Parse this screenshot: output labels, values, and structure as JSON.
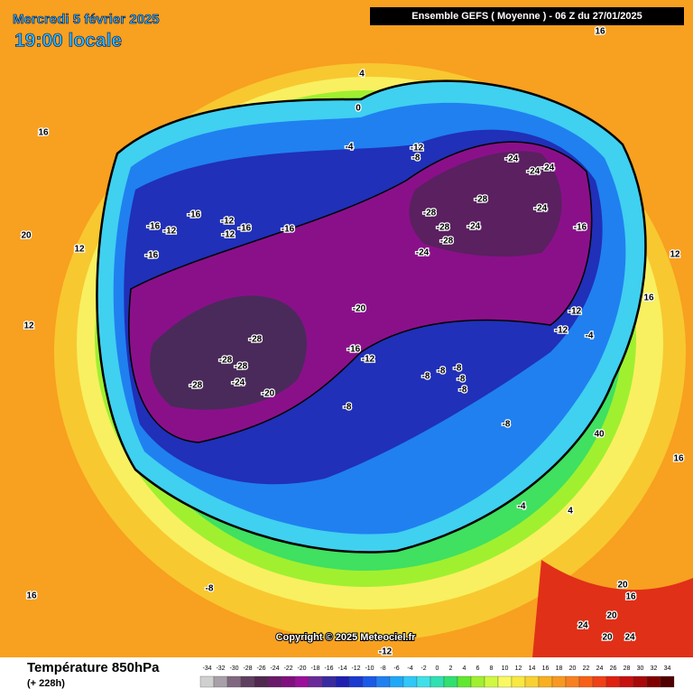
{
  "header": {
    "date": "Mercredi 5 février 2025",
    "time": "19:00 locale",
    "model": "Ensemble GEFS  ( Moyenne )  -  06 Z du 27/01/2025"
  },
  "footer": {
    "title": "Température 850hPa",
    "lead": "(+ 228h)",
    "copyright": "Copyright © 2025 Meteociel.fr"
  },
  "legend": {
    "ticks": [
      -34,
      -32,
      -30,
      -28,
      -26,
      -24,
      -22,
      -20,
      -18,
      -16,
      -14,
      -12,
      -10,
      -8,
      -6,
      -4,
      -2,
      0,
      2,
      4,
      6,
      8,
      10,
      12,
      14,
      16,
      18,
      20,
      22,
      24,
      26,
      28,
      30,
      32,
      34
    ],
    "colors": [
      "#d0d0d0",
      "#a8a0a8",
      "#806880",
      "#604060",
      "#502850",
      "#6a1a6a",
      "#801080",
      "#9a109a",
      "#6a2a9a",
      "#3a2aa0",
      "#2020b0",
      "#1a3ad0",
      "#1a5ae8",
      "#2080f0",
      "#20a8f8",
      "#30c8f8",
      "#40e0e8",
      "#30e0b0",
      "#30e070",
      "#60e830",
      "#a0f030",
      "#d0f840",
      "#f8f860",
      "#f8e840",
      "#f8d030",
      "#f8b020",
      "#f89820",
      "#f88020",
      "#f86018",
      "#f04018",
      "#e02010",
      "#c81010",
      "#a80808",
      "#800000",
      "#500000"
    ]
  },
  "contour_labels": [
    -28,
    -28,
    -28,
    -24,
    -24,
    -24,
    -24,
    -28,
    -24,
    -24,
    -16,
    -20,
    -16,
    -12,
    -8,
    -8,
    -8,
    -8,
    -8,
    -8,
    -8,
    -28,
    -28,
    -28,
    -28,
    -24,
    -20,
    -16,
    -12,
    -16,
    -12,
    -16,
    -12,
    -16,
    -16,
    -4,
    0,
    4,
    -12,
    -12,
    -4,
    16,
    12,
    20,
    12,
    16,
    16,
    -4,
    4,
    40,
    16,
    16,
    12,
    20,
    16,
    24,
    20,
    20,
    24,
    -8,
    -12,
    -8,
    -12
  ]
}
